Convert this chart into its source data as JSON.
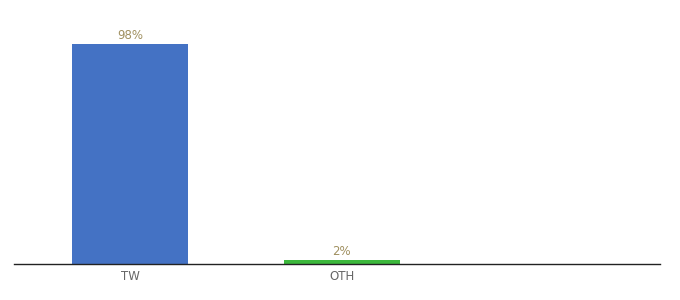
{
  "categories": [
    "TW",
    "OTH"
  ],
  "values": [
    98,
    2
  ],
  "bar_colors": [
    "#4472c4",
    "#3cb83c"
  ],
  "label_colors": [
    "#a09060",
    "#a09060"
  ],
  "xlabel": "",
  "ylabel": "",
  "ylim": [
    0,
    108
  ],
  "background_color": "#ffffff",
  "bar_width": 0.55,
  "label_fontsize": 8.5,
  "xtick_fontsize": 8.5,
  "xtick_color": "#666666"
}
